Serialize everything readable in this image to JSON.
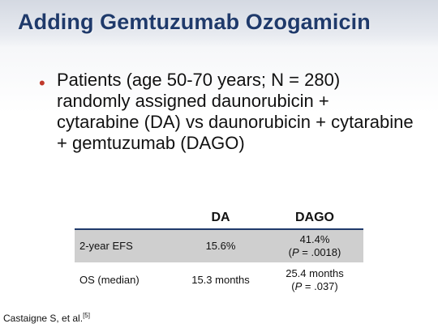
{
  "slide": {
    "title": "Adding Gemtuzumab Ozogamicin",
    "bullet": "Patients (age 50-70 years; N = 280) randomly assigned daunorubicin + cytarabine (DA) vs daunorubicin + cytarabine + gemtuzumab (DAGO)",
    "colors": {
      "title": "#1f3a6b",
      "bullet": "#c0392b",
      "shaded_row": "#cfcfcf"
    }
  },
  "table": {
    "headers": [
      "",
      "DA",
      "DAGO"
    ],
    "rows": [
      {
        "label": "2-year EFS",
        "da": "15.6%",
        "dago": "41.4%",
        "p_open": "(",
        "p_letter": "P",
        "p_rest": " = .0018)"
      },
      {
        "label": "OS (median)",
        "da": "15.3 months",
        "dago": "25.4 months",
        "p_open": "(",
        "p_letter": "P",
        "p_rest": " = .037)"
      }
    ]
  },
  "citation": {
    "text": "Castaigne S, et al.",
    "ref": "[5]"
  }
}
